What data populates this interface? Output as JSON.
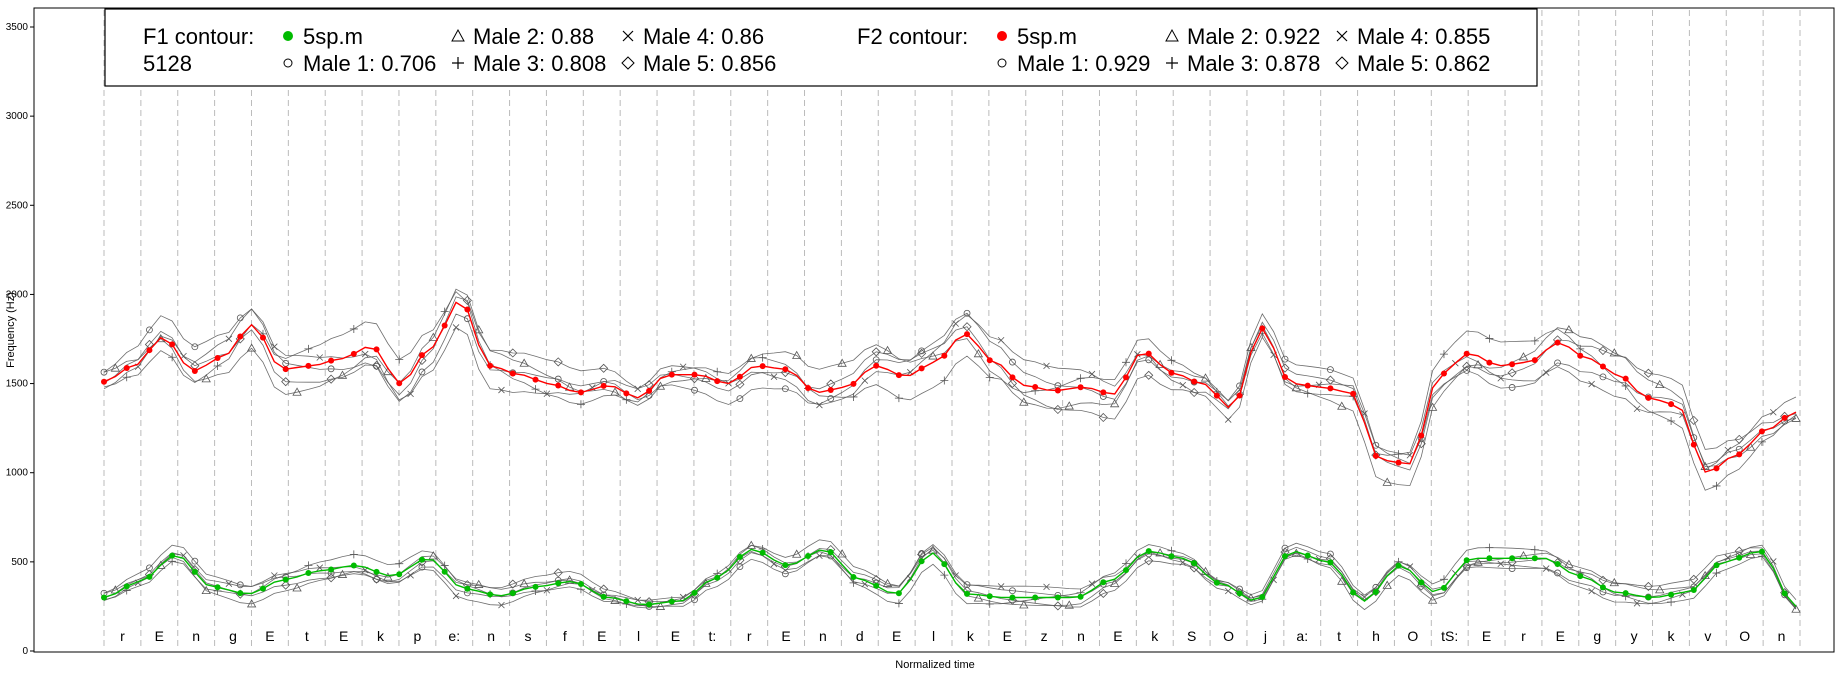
{
  "chart_data": {
    "type": "line",
    "xlabel": "Normalized time",
    "ylabel": "Frequency (Hz)",
    "ylim": [
      0,
      3600
    ],
    "yticks": [
      0,
      500,
      1000,
      1500,
      2000,
      2500,
      3000,
      3500
    ],
    "grid": "vertical dashed at phone boundaries",
    "phones": [
      "r",
      "E",
      "n",
      "g",
      "E",
      "t",
      "E",
      "k",
      "p",
      "e:",
      "n",
      "s",
      "f",
      "E",
      "l",
      "E",
      "t:",
      "r",
      "E",
      "n",
      "d",
      "E",
      "l",
      "k",
      "E",
      "z",
      "n",
      "E",
      "k",
      "S",
      "O",
      "j",
      "a:",
      "t",
      "h",
      "O",
      "tS:",
      "E",
      "r",
      "E",
      "g",
      "y",
      "k",
      "v",
      "O",
      "n"
    ],
    "legend": {
      "placement": "top-left",
      "groups": [
        {
          "title": "F1 contour:",
          "subtitle": "5128",
          "entries": [
            {
              "marker": "green-dot",
              "label": "5sp.m"
            },
            {
              "marker": "circle",
              "label": "Male 1: 0.706"
            },
            {
              "marker": "triangle",
              "label": "Male 2: 0.88"
            },
            {
              "marker": "plus",
              "label": "Male 3: 0.808"
            },
            {
              "marker": "cross",
              "label": "Male 4: 0.86"
            },
            {
              "marker": "diamond",
              "label": "Male 5: 0.856"
            }
          ]
        },
        {
          "title": "F2 contour:",
          "subtitle": "",
          "entries": [
            {
              "marker": "red-dot",
              "label": "5sp.m"
            },
            {
              "marker": "circle",
              "label": "Male 1: 0.929"
            },
            {
              "marker": "triangle",
              "label": "Male 2: 0.922"
            },
            {
              "marker": "plus",
              "label": "Male 3: 0.878"
            },
            {
              "marker": "cross",
              "label": "Male 4: 0.855"
            },
            {
              "marker": "diamond",
              "label": "Male 5: 0.862"
            }
          ]
        }
      ]
    },
    "colors": {
      "f1_mean": "#00bb00",
      "f2_mean": "#ff0000",
      "speakers": "#555555",
      "grid": "#bbbbbb"
    },
    "f1_mean": [
      300,
      390,
      540,
      360,
      320,
      400,
      450,
      480,
      420,
      520,
      350,
      310,
      360,
      390,
      300,
      260,
      280,
      410,
      570,
      480,
      570,
      400,
      320,
      550,
      320,
      300,
      300,
      300,
      400,
      560,
      520,
      380,
      280,
      560,
      500,
      280,
      480,
      330,
      520,
      520,
      520,
      420,
      330,
      300,
      330,
      500,
      560,
      250
    ],
    "f2_mean": [
      1510,
      1600,
      1760,
      1570,
      1650,
      1830,
      1580,
      1600,
      1640,
      1710,
      1500,
      1700,
      1970,
      1600,
      1550,
      1500,
      1450,
      1490,
      1420,
      1550,
      1550,
      1500,
      1600,
      1580,
      1450,
      1480,
      1600,
      1540,
      1620,
      1780,
      1620,
      1490,
      1460,
      1480,
      1440,
      1680,
      1560,
      1500,
      1360,
      1810,
      1500,
      1480,
      1450,
      1070,
      1050,
      1550,
      1670,
      1600,
      1620,
      1730,
      1640,
      1550,
      1420,
      1380,
      1000,
      1100,
      1240,
      1340
    ]
  }
}
